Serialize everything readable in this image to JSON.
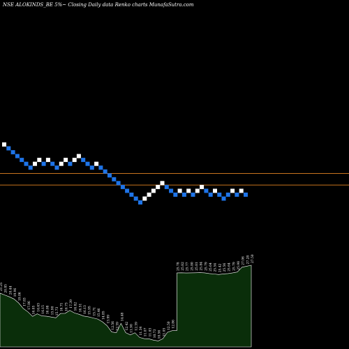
{
  "header": {
    "title": "NSE ALOKINDS_BE 5%~  Closing Daily data  Renko  charts MunafaSutra.com"
  },
  "colors": {
    "background": "#000000",
    "up_brick": "#ffffff",
    "down_brick": "#1e74e8",
    "reference_line": "#c8741e",
    "volume_fill": "#0a2e0a",
    "volume_stroke": "#ffffff"
  },
  "chart_data": [
    {
      "type": "renko",
      "brick_size_label": "5%",
      "bricks": [
        {
          "level": 30,
          "dir": "up"
        },
        {
          "level": 29,
          "dir": "down"
        },
        {
          "level": 28,
          "dir": "down"
        },
        {
          "level": 27,
          "dir": "down"
        },
        {
          "level": 26,
          "dir": "down"
        },
        {
          "level": 25,
          "dir": "down"
        },
        {
          "level": 24,
          "dir": "down"
        },
        {
          "level": 25,
          "dir": "up"
        },
        {
          "level": 26,
          "dir": "up"
        },
        {
          "level": 25,
          "dir": "down"
        },
        {
          "level": 26,
          "dir": "up"
        },
        {
          "level": 25,
          "dir": "down"
        },
        {
          "level": 24,
          "dir": "down"
        },
        {
          "level": 25,
          "dir": "up"
        },
        {
          "level": 26,
          "dir": "up"
        },
        {
          "level": 25,
          "dir": "down"
        },
        {
          "level": 26,
          "dir": "up"
        },
        {
          "level": 27,
          "dir": "up"
        },
        {
          "level": 26,
          "dir": "down"
        },
        {
          "level": 25,
          "dir": "down"
        },
        {
          "level": 24,
          "dir": "down"
        },
        {
          "level": 25,
          "dir": "up"
        },
        {
          "level": 24,
          "dir": "down"
        },
        {
          "level": 23,
          "dir": "down"
        },
        {
          "level": 22,
          "dir": "down"
        },
        {
          "level": 21,
          "dir": "down"
        },
        {
          "level": 20,
          "dir": "down"
        },
        {
          "level": 19,
          "dir": "down"
        },
        {
          "level": 18,
          "dir": "down"
        },
        {
          "level": 17,
          "dir": "down"
        },
        {
          "level": 16,
          "dir": "down"
        },
        {
          "level": 15,
          "dir": "down"
        },
        {
          "level": 16,
          "dir": "up"
        },
        {
          "level": 17,
          "dir": "up"
        },
        {
          "level": 18,
          "dir": "up"
        },
        {
          "level": 19,
          "dir": "up"
        },
        {
          "level": 20,
          "dir": "up"
        },
        {
          "level": 19,
          "dir": "down"
        },
        {
          "level": 18,
          "dir": "down"
        },
        {
          "level": 17,
          "dir": "down"
        },
        {
          "level": 18,
          "dir": "up"
        },
        {
          "level": 17,
          "dir": "down"
        },
        {
          "level": 18,
          "dir": "up"
        },
        {
          "level": 17,
          "dir": "down"
        },
        {
          "level": 18,
          "dir": "up"
        },
        {
          "level": 19,
          "dir": "up"
        },
        {
          "level": 18,
          "dir": "down"
        },
        {
          "level": 17,
          "dir": "down"
        },
        {
          "level": 18,
          "dir": "up"
        },
        {
          "level": 17,
          "dir": "down"
        },
        {
          "level": 16,
          "dir": "down"
        },
        {
          "level": 17,
          "dir": "down"
        },
        {
          "level": 18,
          "dir": "up"
        },
        {
          "level": 17,
          "dir": "down"
        },
        {
          "level": 18,
          "dir": "up"
        },
        {
          "level": 17,
          "dir": "down"
        }
      ],
      "reference_lines": [
        22.5,
        19.5
      ]
    },
    {
      "type": "area",
      "labels": [
        "21.25",
        "20.85",
        "20.44",
        "19.96",
        "19.06",
        "17.83",
        "17.06",
        "16.05",
        "16.63",
        "16.15",
        "16.08",
        "15.90",
        "15.73",
        "16.71",
        "16.73",
        "17.39",
        "16.82",
        "16.51",
        "16.13",
        "15.95",
        "15.71",
        "15.46",
        "14.85",
        "13.99",
        "12.56",
        "12.39",
        "14.48",
        "12.42",
        "11.90",
        "12.39",
        "11.34",
        "11.07",
        "11.03",
        "10.73",
        "10.56",
        "11.05",
        "12.50",
        "12.86",
        "25.78",
        "25.82",
        "25.77",
        "25.80",
        "25.81",
        "25.84",
        "25.79",
        "25.64",
        "25.54",
        "25.42",
        "25.56",
        "25.64",
        "25.79",
        "25.98",
        "27.06",
        "27.28",
        "27.50"
      ],
      "values": [
        21.25,
        20.85,
        20.44,
        19.96,
        19.06,
        17.83,
        17.06,
        16.05,
        16.63,
        16.15,
        16.08,
        15.9,
        15.73,
        16.71,
        16.73,
        17.39,
        16.82,
        16.51,
        16.13,
        15.95,
        15.71,
        15.46,
        14.85,
        13.99,
        12.56,
        12.39,
        14.48,
        12.42,
        11.9,
        12.39,
        11.34,
        11.07,
        11.03,
        10.73,
        10.56,
        11.05,
        12.5,
        12.86,
        25.78,
        25.82,
        25.77,
        25.8,
        25.81,
        25.84,
        25.79,
        25.64,
        25.54,
        25.42,
        25.56,
        25.64,
        25.79,
        25.98,
        27.06,
        27.28,
        27.5
      ]
    }
  ]
}
